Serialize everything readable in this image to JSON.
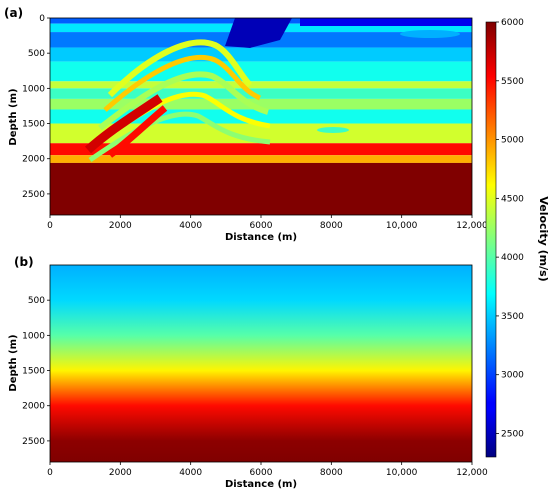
{
  "chart_data": [
    {
      "type": "heatmap",
      "panel_label": "(a)",
      "xlabel": "Distance (m)",
      "ylabel": "Depth (m)",
      "xlim": [
        0,
        12000
      ],
      "ylim": [
        2800,
        0
      ],
      "x_ticks": [
        0,
        2000,
        4000,
        6000,
        8000,
        10000,
        12000
      ],
      "x_tick_labels": [
        "0",
        "2000",
        "4000",
        "6000",
        "8000",
        "10,000",
        "12,000"
      ],
      "y_ticks": [
        0,
        500,
        1000,
        1500,
        2000,
        2500
      ],
      "y_tick_labels": [
        "0",
        "500",
        "1000",
        "1500",
        "2000",
        "2500"
      ],
      "layers_velocity_by_depth": [
        {
          "top": 0,
          "bottom": 80,
          "velocity": 3100
        },
        {
          "top": 80,
          "bottom": 200,
          "velocity": 3600
        },
        {
          "top": 200,
          "bottom": 420,
          "velocity": 3200
        },
        {
          "top": 420,
          "bottom": 620,
          "velocity": 3500
        },
        {
          "top": 620,
          "bottom": 900,
          "velocity": 3750
        },
        {
          "top": 900,
          "bottom": 1000,
          "velocity": 4400
        },
        {
          "top": 1000,
          "bottom": 1150,
          "velocity": 3900
        },
        {
          "top": 1150,
          "bottom": 1300,
          "velocity": 4250
        },
        {
          "top": 1300,
          "bottom": 1500,
          "velocity": 3750
        },
        {
          "top": 1500,
          "bottom": 1780,
          "velocity": 4450
        },
        {
          "top": 1780,
          "bottom": 1950,
          "velocity": 5500
        },
        {
          "top": 1950,
          "bottom": 2060,
          "velocity": 4900
        },
        {
          "top": 2060,
          "bottom": 2800,
          "velocity": 6000
        }
      ]
    },
    {
      "type": "heatmap",
      "panel_label": "(b)",
      "xlabel": "Distance (m)",
      "ylabel": "Depth (m)",
      "xlim": [
        0,
        12000
      ],
      "ylim": [
        2800,
        0
      ],
      "x_ticks": [
        0,
        2000,
        4000,
        6000,
        8000,
        10000,
        12000
      ],
      "x_tick_labels": [
        "0",
        "2000",
        "4000",
        "6000",
        "8000",
        "10,000",
        "12,000"
      ],
      "y_ticks": [
        500,
        1000,
        1500,
        2000,
        2500
      ],
      "y_tick_labels": [
        "500",
        "1000",
        "1500",
        "2000",
        "2500"
      ],
      "velocity_by_depth": [
        {
          "depth": 0,
          "velocity": 3400
        },
        {
          "depth": 500,
          "velocity": 3550
        },
        {
          "depth": 1000,
          "velocity": 4000
        },
        {
          "depth": 1500,
          "velocity": 4650
        },
        {
          "depth": 2000,
          "velocity": 5500
        },
        {
          "depth": 2500,
          "velocity": 5950
        },
        {
          "depth": 2800,
          "velocity": 6000
        }
      ]
    }
  ],
  "colorbar": {
    "label": "Velocity (m/s)",
    "vmin": 2300,
    "vmax": 6000,
    "ticks": [
      2500,
      3000,
      3500,
      4000,
      4500,
      5000,
      5500,
      6000
    ],
    "tick_labels": [
      "2500",
      "3000",
      "3500",
      "4000",
      "4500",
      "5000",
      "5500",
      "6000"
    ],
    "colormap": "jet"
  }
}
